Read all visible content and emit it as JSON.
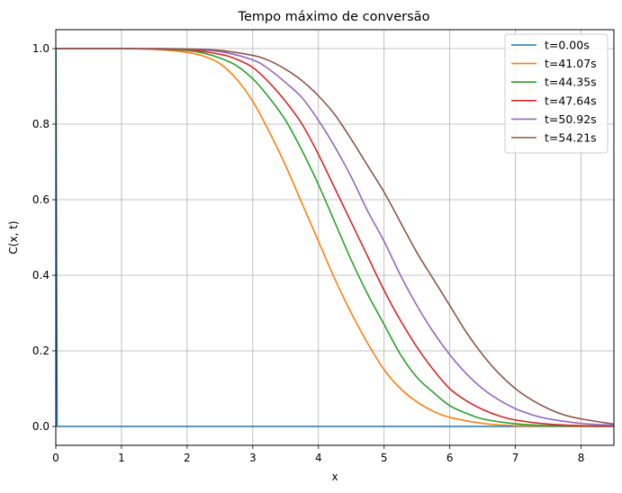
{
  "chart_data": {
    "type": "line",
    "title": "Tempo máximo de conversão",
    "xlabel": "x",
    "ylabel": "C(x, t)",
    "xlim": [
      0,
      8.5
    ],
    "ylim": [
      -0.05,
      1.05
    ],
    "xticks": [
      0,
      1,
      2,
      3,
      4,
      5,
      6,
      7,
      8
    ],
    "yticks": [
      0.0,
      0.2,
      0.4,
      0.6,
      0.8,
      1.0
    ],
    "xtick_labels": [
      "0",
      "1",
      "2",
      "3",
      "4",
      "5",
      "6",
      "7",
      "8"
    ],
    "ytick_labels": [
      "0.0",
      "0.2",
      "0.4",
      "0.6",
      "0.8",
      "1.0"
    ],
    "grid": true,
    "legend_position": "top-right",
    "series": [
      {
        "name": "t=0.00s",
        "color": "#1f77b4",
        "x": [
          0,
          0.001,
          0.02,
          1,
          2,
          3,
          4,
          5,
          6,
          7,
          8,
          8.5
        ],
        "y": [
          1.0,
          1.0,
          0.0,
          0,
          0,
          0,
          0,
          0,
          0,
          0,
          0,
          0
        ]
      },
      {
        "name": "t=41.07s",
        "color": "#ff7f0e",
        "x": [
          0,
          0.5,
          1,
          1.5,
          2,
          2.25,
          2.5,
          2.75,
          3,
          3.25,
          3.5,
          3.75,
          4,
          4.25,
          4.5,
          4.75,
          5,
          5.25,
          5.5,
          5.75,
          6,
          6.5,
          7,
          7.5,
          8,
          8.5
        ],
        "y": [
          1,
          1,
          1,
          0.998,
          0.99,
          0.98,
          0.96,
          0.92,
          0.86,
          0.78,
          0.69,
          0.59,
          0.49,
          0.39,
          0.3,
          0.22,
          0.15,
          0.1,
          0.065,
          0.04,
          0.024,
          0.008,
          0.002,
          0.001,
          0,
          0
        ]
      },
      {
        "name": "t=44.35s",
        "color": "#2ca02c",
        "x": [
          0,
          0.5,
          1,
          1.5,
          2,
          2.25,
          2.5,
          2.75,
          3,
          3.25,
          3.5,
          3.75,
          4,
          4.25,
          4.5,
          4.75,
          5,
          5.25,
          5.5,
          5.75,
          6,
          6.25,
          6.5,
          7,
          7.5,
          8,
          8.5
        ],
        "y": [
          1,
          1,
          1,
          0.999,
          0.995,
          0.988,
          0.975,
          0.955,
          0.92,
          0.87,
          0.81,
          0.73,
          0.64,
          0.54,
          0.44,
          0.35,
          0.27,
          0.19,
          0.13,
          0.09,
          0.055,
          0.035,
          0.02,
          0.007,
          0.002,
          0.001,
          0
        ]
      },
      {
        "name": "t=47.64s",
        "color": "#d62728",
        "x": [
          0,
          0.5,
          1,
          1.5,
          2,
          2.5,
          2.75,
          3,
          3.25,
          3.5,
          3.75,
          4,
          4.25,
          4.5,
          4.75,
          5,
          5.25,
          5.5,
          5.75,
          6,
          6.25,
          6.5,
          6.75,
          7,
          7.5,
          8,
          8.5
        ],
        "y": [
          1,
          1,
          1,
          0.999,
          0.997,
          0.985,
          0.972,
          0.95,
          0.91,
          0.86,
          0.8,
          0.72,
          0.63,
          0.54,
          0.45,
          0.36,
          0.28,
          0.21,
          0.15,
          0.1,
          0.068,
          0.045,
          0.028,
          0.017,
          0.006,
          0.002,
          0.001
        ]
      },
      {
        "name": "t=50.92s",
        "color": "#9467bd",
        "x": [
          0,
          0.5,
          1,
          1.5,
          2,
          2.5,
          3,
          3.25,
          3.5,
          3.75,
          4,
          4.25,
          4.5,
          4.75,
          5,
          5.25,
          5.5,
          5.75,
          6,
          6.25,
          6.5,
          6.75,
          7,
          7.25,
          7.5,
          8,
          8.5
        ],
        "y": [
          1,
          1,
          1,
          1,
          0.998,
          0.992,
          0.97,
          0.945,
          0.91,
          0.87,
          0.81,
          0.74,
          0.66,
          0.57,
          0.49,
          0.4,
          0.32,
          0.25,
          0.19,
          0.14,
          0.1,
          0.07,
          0.047,
          0.031,
          0.02,
          0.008,
          0.003
        ]
      },
      {
        "name": "t=54.21s",
        "color": "#8c564b",
        "x": [
          0,
          0.5,
          1,
          1.5,
          2,
          2.5,
          3,
          3.25,
          3.5,
          3.75,
          4,
          4.25,
          4.5,
          4.75,
          5,
          5.25,
          5.5,
          5.75,
          6,
          6.25,
          6.5,
          6.75,
          7,
          7.25,
          7.5,
          7.75,
          8,
          8.5
        ],
        "y": [
          1,
          1,
          1,
          1,
          0.999,
          0.995,
          0.982,
          0.968,
          0.945,
          0.915,
          0.875,
          0.825,
          0.76,
          0.69,
          0.62,
          0.54,
          0.46,
          0.39,
          0.32,
          0.25,
          0.19,
          0.14,
          0.1,
          0.07,
          0.047,
          0.03,
          0.02,
          0.006
        ]
      }
    ]
  }
}
